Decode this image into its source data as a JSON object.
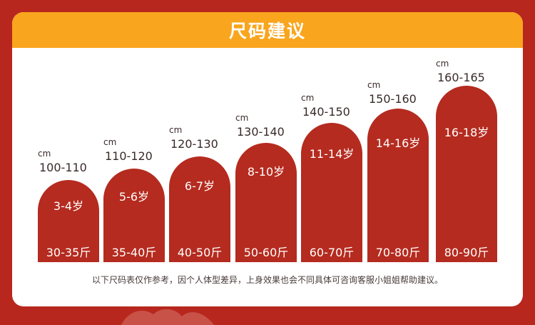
{
  "header": {
    "title": "尺码建议"
  },
  "sizes": [
    {
      "cm": "cm",
      "height": "100-110",
      "age": "3-4岁",
      "weight": "30-35斤"
    },
    {
      "cm": "cm",
      "height": "110-120",
      "age": "5-6岁",
      "weight": "35-40斤"
    },
    {
      "cm": "cm",
      "height": "120-130",
      "age": "6-7岁",
      "weight": "40-50斤"
    },
    {
      "cm": "cm",
      "height": "130-140",
      "age": "8-10岁",
      "weight": "50-60斤"
    },
    {
      "cm": "cm",
      "height": "140-150",
      "age": "11-14岁",
      "weight": "60-70斤"
    },
    {
      "cm": "cm",
      "height": "150-160",
      "age": "14-16岁",
      "weight": "70-80斤"
    },
    {
      "cm": "cm",
      "height": "160-165",
      "age": "16-18岁",
      "weight": "80-90斤"
    }
  ],
  "note": "以下尺码表仅作参考，因个人体型差异，上身效果也会不同具体可咨询客服小姐姐帮助建议。",
  "colors": {
    "background": "#b8271d",
    "header": "#f9a51d",
    "bar": "#b52b1f"
  }
}
